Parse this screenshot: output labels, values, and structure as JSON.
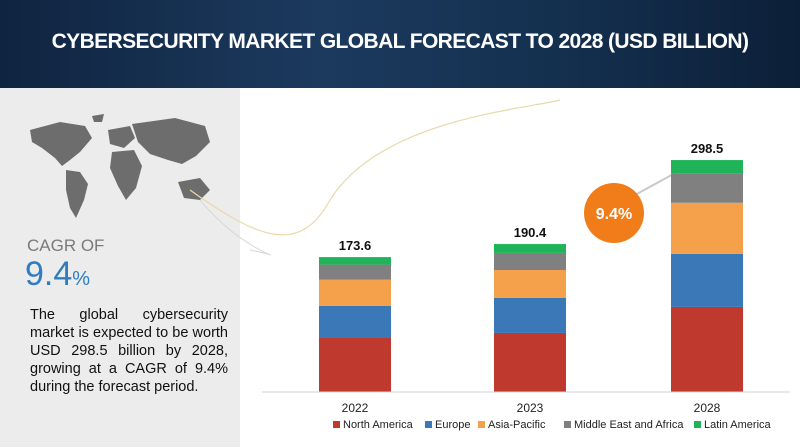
{
  "header": {
    "title": "CYBERSECURITY MARKET GLOBAL FORECAST TO 2028 (USD BILLION)"
  },
  "sidebar": {
    "cagr_label": "CAGR OF",
    "cagr_value": "9.4",
    "cagr_unit": "%",
    "description": "The global cybersecurity market is expected to be worth USD 298.5 billion by 2028, growing at a CAGR of 9.4% during the forecast period."
  },
  "chart_data": {
    "type": "bar",
    "stacked": true,
    "categories": [
      "2022",
      "2023",
      "2028"
    ],
    "series": [
      {
        "name": "North America",
        "color": "#c0392f",
        "values": [
          69.5,
          76,
          109.5
        ]
      },
      {
        "name": "Europe",
        "color": "#3b78b8",
        "values": [
          41.5,
          45,
          68.3
        ]
      },
      {
        "name": "Asia-Pacific",
        "color": "#f5a04b",
        "values": [
          33.5,
          36,
          65.7
        ]
      },
      {
        "name": "Middle East and Africa",
        "color": "#808080",
        "values": [
          19.5,
          22,
          37.3
        ]
      },
      {
        "name": "Latin America",
        "color": "#1fb457",
        "values": [
          9.6,
          11.4,
          17.7
        ]
      }
    ],
    "totals": [
      173.6,
      190.4,
      298.5
    ],
    "annotation": "9.4%"
  }
}
